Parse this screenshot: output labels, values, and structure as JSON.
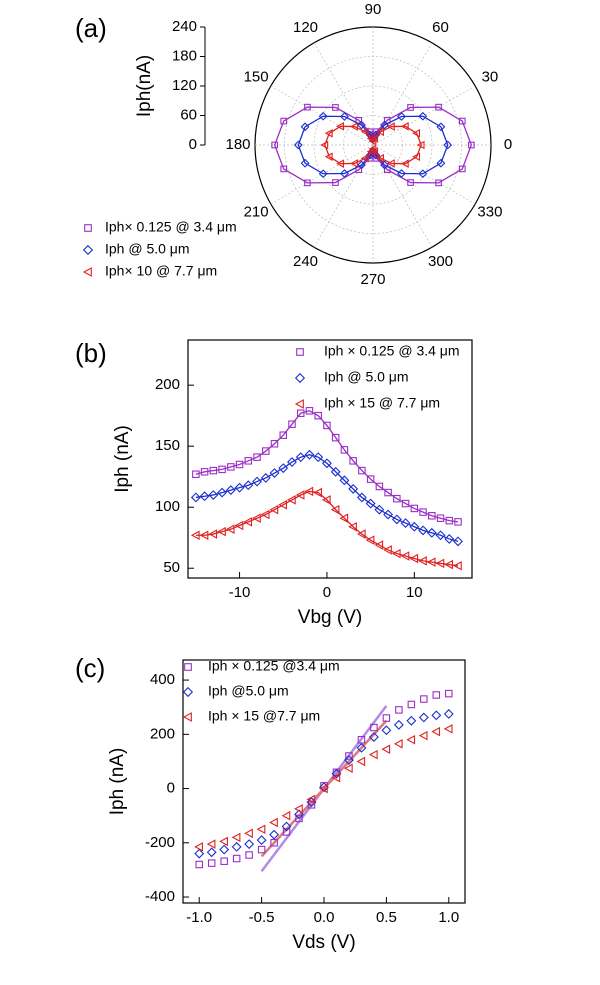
{
  "chart_data": [
    {
      "type": "polar",
      "panel_label": "(a)",
      "y_label": "Iph(nA)",
      "legend": "lower left",
      "rlim": [
        0,
        240
      ],
      "rticks": [
        0,
        60,
        120,
        180,
        240
      ],
      "theta_ticks": [
        0,
        30,
        60,
        90,
        120,
        150,
        180,
        210,
        240,
        270,
        300,
        330
      ],
      "theta": [
        0,
        15,
        30,
        45,
        60,
        75,
        90,
        105,
        120,
        135,
        150,
        165,
        180,
        195,
        210,
        225,
        240,
        255,
        270,
        285,
        300,
        315,
        330,
        345
      ],
      "series": [
        {
          "name": "Iph× 0.125 @ 3.4 μm",
          "color": "#9a2fc6",
          "marker": "square",
          "values": [
            200,
            188,
            154,
            108,
            58,
            28,
            16,
            28,
            58,
            108,
            154,
            188,
            200,
            188,
            154,
            108,
            58,
            28,
            16,
            28,
            58,
            108,
            154,
            188
          ]
        },
        {
          "name": "Iph @ 5.0 μm",
          "color": "#1a2fd0",
          "marker": "diamond",
          "values": [
            152,
            143,
            117,
            82,
            47,
            21,
            12,
            21,
            47,
            82,
            117,
            143,
            152,
            143,
            117,
            82,
            47,
            21,
            12,
            21,
            47,
            82,
            117,
            143
          ]
        },
        {
          "name": "Iph× 10 @ 7.7 μm",
          "color": "#e02020",
          "marker": "triangle-left",
          "values": [
            98,
            92,
            76,
            53,
            31,
            14,
            8,
            14,
            31,
            53,
            76,
            92,
            98,
            92,
            76,
            53,
            31,
            14,
            8,
            14,
            31,
            53,
            76,
            92
          ]
        }
      ]
    },
    {
      "type": "line",
      "panel_label": "(b)",
      "x_label": "Vbg (V)",
      "y_label": "Iph (nA)",
      "legend": "upper right",
      "xlim": [
        -15.9,
        16.6
      ],
      "xticks": [
        -10,
        0,
        10
      ],
      "ylim": [
        42,
        237
      ],
      "yticks": [
        50,
        100,
        150,
        200
      ],
      "x": [
        -15,
        -14,
        -13,
        -12,
        -11,
        -10,
        -9,
        -8,
        -7,
        -6,
        -5,
        -4,
        -3,
        -2,
        -1,
        0,
        1,
        2,
        3,
        4,
        5,
        6,
        7,
        8,
        9,
        10,
        11,
        12,
        13,
        14,
        15
      ],
      "series": [
        {
          "name": "Iph × 0.125 @ 3.4 μm",
          "color": "#9a2fc6",
          "marker": "square",
          "values": [
            127,
            129,
            130,
            131,
            133,
            135,
            138,
            141,
            146,
            152,
            159,
            168,
            177,
            179,
            175,
            167,
            157,
            147,
            138,
            130,
            123,
            117,
            112,
            107,
            103,
            99,
            96,
            93,
            91,
            89,
            88
          ]
        },
        {
          "name": "Iph @ 5.0 μm",
          "color": "#1a2fd0",
          "marker": "diamond",
          "values": [
            108,
            109,
            110,
            112,
            114,
            116,
            118,
            121,
            124,
            128,
            132,
            137,
            141,
            143,
            141,
            136,
            129,
            122,
            115,
            108,
            103,
            98,
            94,
            90,
            87,
            84,
            81,
            79,
            77,
            74,
            72
          ]
        },
        {
          "name": "Iph × 15 @ 7.7 μm",
          "color": "#e02020",
          "marker": "triangle-left",
          "values": [
            77,
            77,
            78,
            80,
            82,
            85,
            88,
            91,
            94,
            98,
            102,
            106,
            110,
            113,
            112,
            106,
            98,
            91,
            84,
            78,
            73,
            69,
            65,
            62,
            60,
            58,
            56,
            55,
            54,
            53,
            52
          ]
        }
      ]
    },
    {
      "type": "scatter",
      "panel_label": "(c)",
      "x_label": "Vds (V)",
      "y_label": "Iph (nA)",
      "legend": "upper left",
      "xlim": [
        -1.13,
        1.13
      ],
      "xticks": [
        {
          "value": -1,
          "label": "-1.0"
        },
        -0.5,
        {
          "value": 0,
          "label": "0.0"
        },
        0.5,
        {
          "value": 1,
          "label": "1.0"
        }
      ],
      "ylim": [
        -422,
        474
      ],
      "yticks": [
        -400,
        -200,
        0,
        200,
        400
      ],
      "x": [
        -1,
        -0.9,
        -0.8,
        -0.7,
        -0.6,
        -0.5,
        -0.4,
        -0.3,
        -0.2,
        -0.1,
        0,
        0.1,
        0.2,
        0.3,
        0.4,
        0.5,
        0.6,
        0.7,
        0.8,
        0.9,
        1
      ],
      "series": [
        {
          "name": "Iph × 0.125 @3.4 μm",
          "color": "#9a2fc6",
          "marker": "square",
          "values": [
            -280,
            -275,
            -268,
            -258,
            -245,
            -225,
            -200,
            -160,
            -110,
            -60,
            10,
            60,
            120,
            180,
            225,
            260,
            290,
            310,
            330,
            345,
            350
          ]
        },
        {
          "name": "Iph @5.0 μm",
          "color": "#1a2fd0",
          "marker": "diamond",
          "values": [
            -240,
            -235,
            -225,
            -215,
            -205,
            -190,
            -170,
            -140,
            -95,
            -50,
            5,
            55,
            105,
            150,
            190,
            215,
            235,
            250,
            262,
            270,
            275
          ]
        },
        {
          "name": "Iph × 15 @7.7 μm",
          "color": "#e02020",
          "marker": "triangle-left",
          "values": [
            -215,
            -205,
            -195,
            -180,
            -165,
            -150,
            -125,
            -100,
            -75,
            -40,
            0,
            40,
            75,
            100,
            125,
            145,
            165,
            180,
            195,
            210,
            220
          ]
        }
      ],
      "fit_lines": [
        {
          "color": "#b08ae8",
          "x": [
            -0.5,
            0.5
          ],
          "values": [
            -305,
            305
          ]
        },
        {
          "color": "#e07878",
          "x": [
            -0.5,
            0.5
          ],
          "values": [
            -250,
            250
          ]
        }
      ]
    }
  ]
}
